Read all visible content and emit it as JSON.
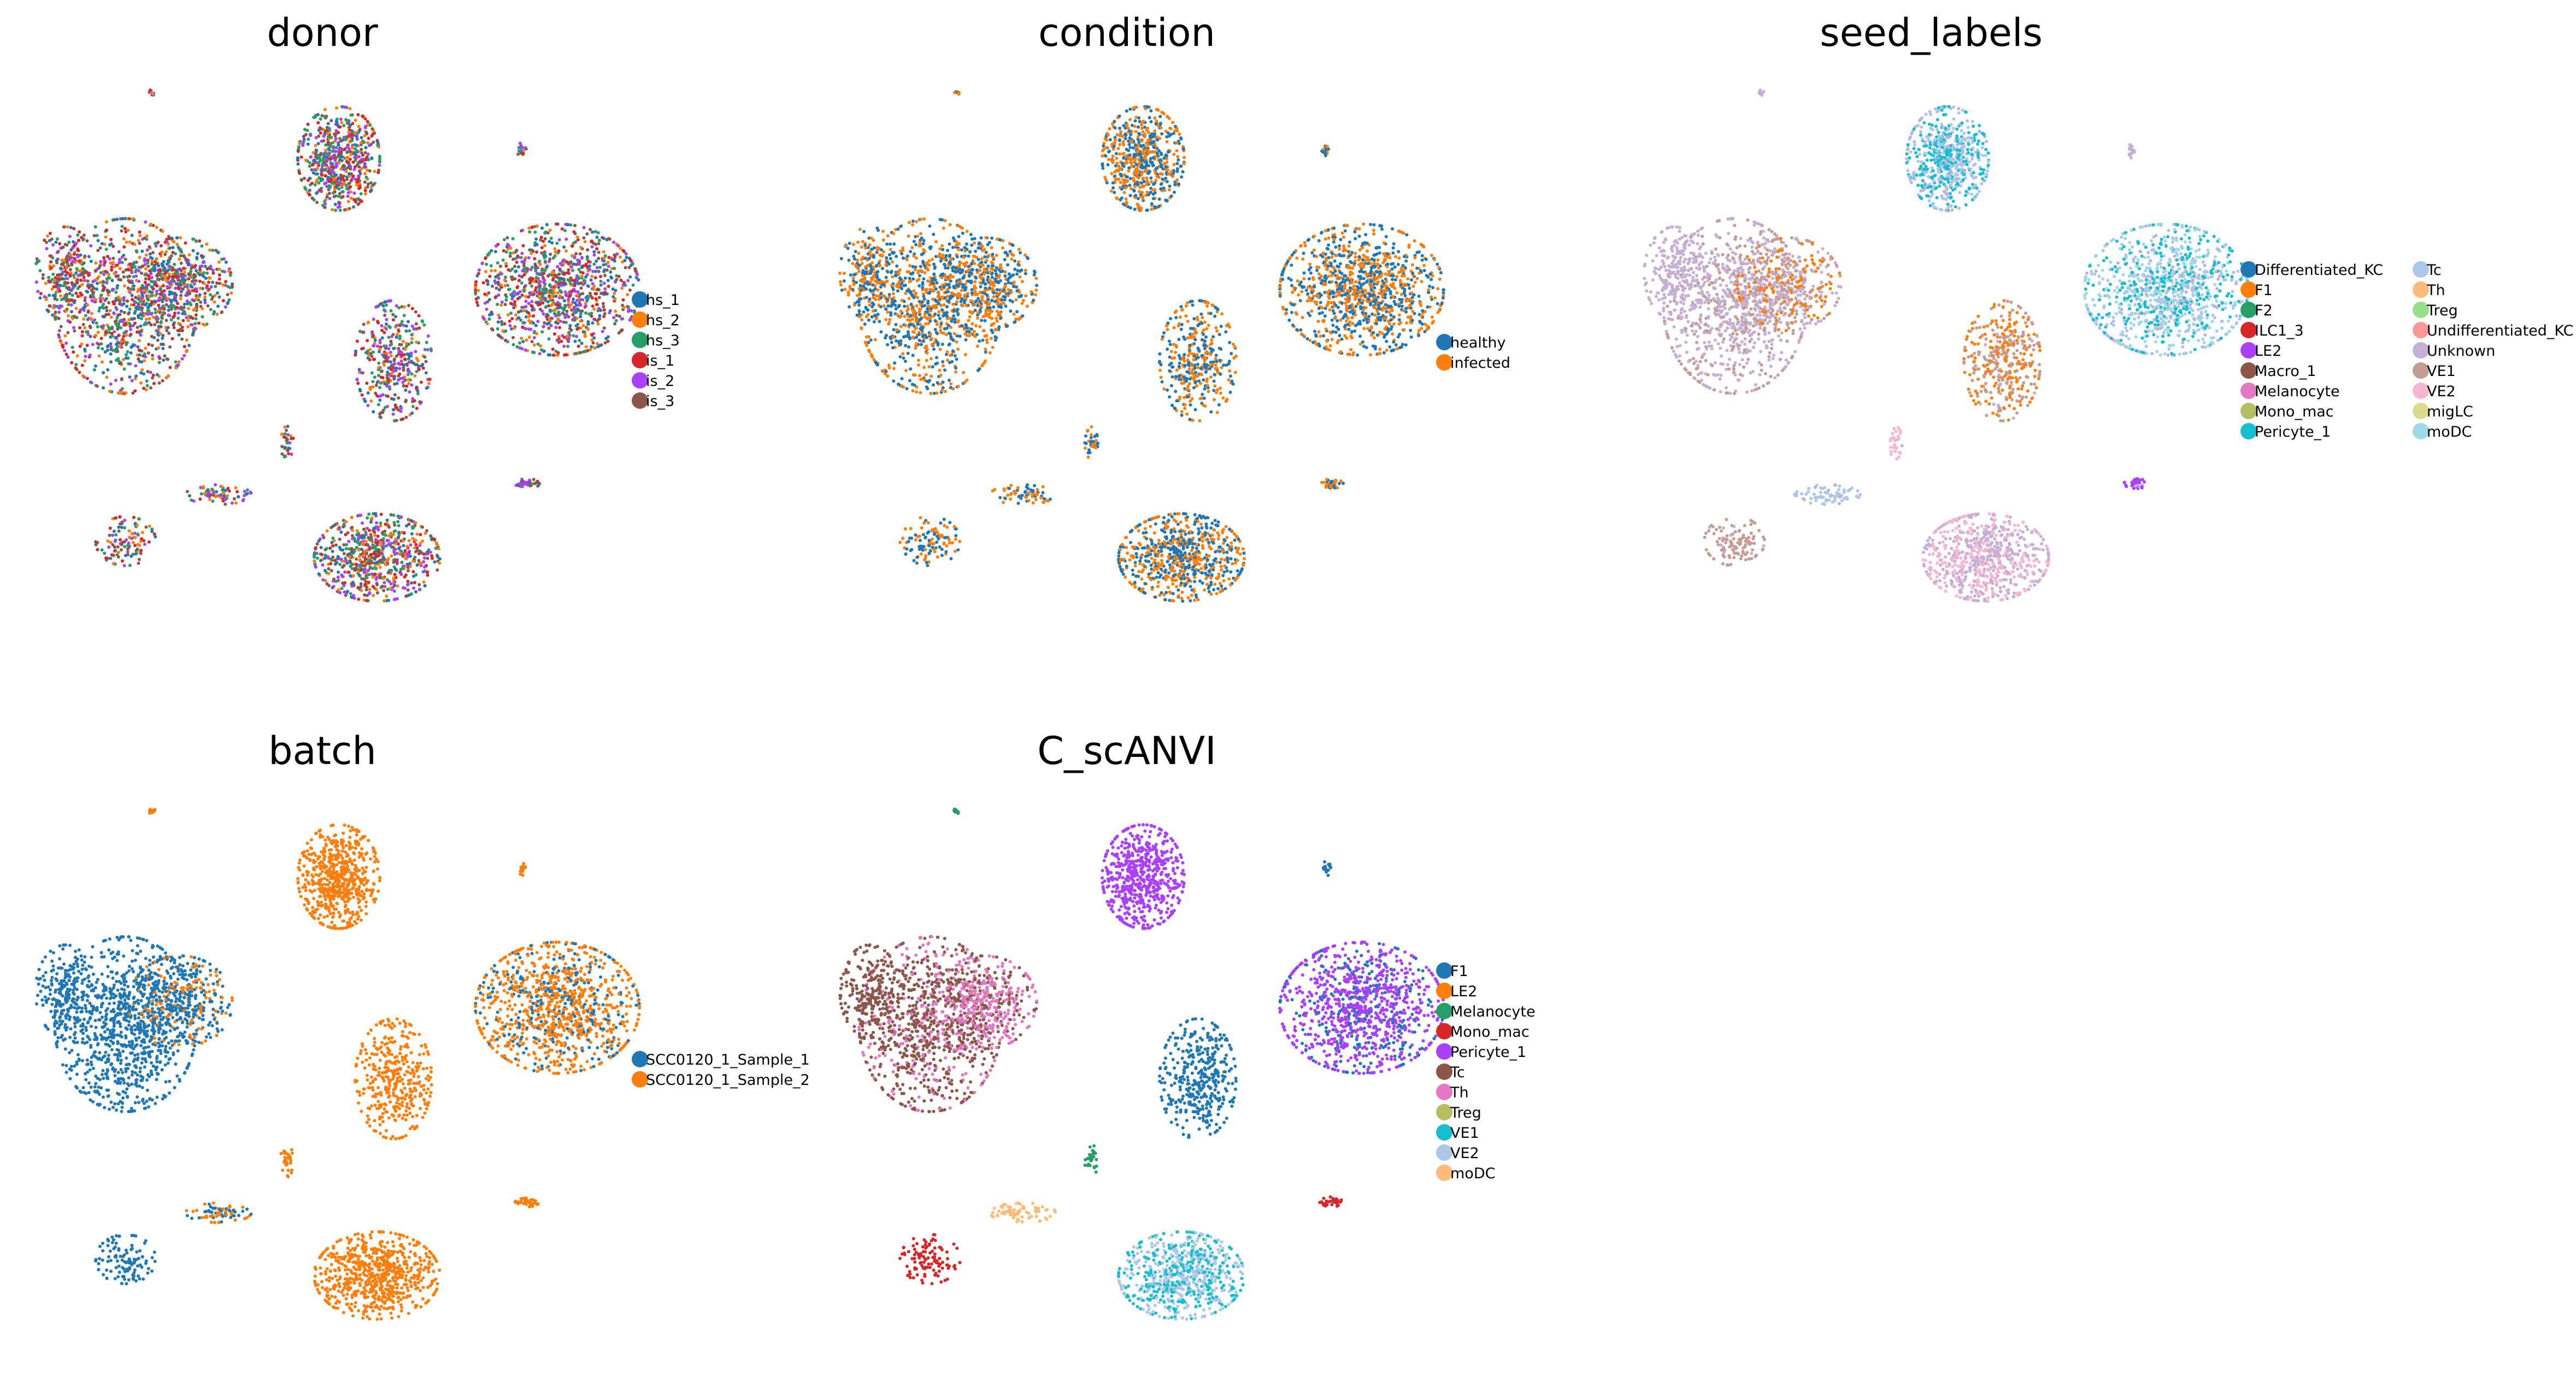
{
  "chart_data": [
    {
      "type": "scatter",
      "title": "donor",
      "xlabel": "",
      "ylabel": "",
      "grid": false,
      "legend_position": "right",
      "color_by": "donor",
      "legend_columns": 1,
      "mode": "mixed",
      "categories": [
        {
          "name": "hs_1",
          "color": "#1f77b4"
        },
        {
          "name": "hs_2",
          "color": "#ff7f0e"
        },
        {
          "name": "hs_3",
          "color": "#279e68"
        },
        {
          "name": "is_1",
          "color": "#d62728"
        },
        {
          "name": "is_2",
          "color": "#aa40fc"
        },
        {
          "name": "is_3",
          "color": "#8c564b"
        }
      ]
    },
    {
      "type": "scatter",
      "title": "condition",
      "xlabel": "",
      "ylabel": "",
      "grid": false,
      "legend_position": "right",
      "color_by": "condition",
      "legend_columns": 1,
      "mode": "mixed",
      "categories": [
        {
          "name": "healthy",
          "color": "#1f77b4"
        },
        {
          "name": "infected",
          "color": "#ff7f0e"
        }
      ]
    },
    {
      "type": "scatter",
      "title": "seed_labels",
      "xlabel": "",
      "ylabel": "",
      "grid": false,
      "legend_position": "right",
      "color_by": "seed_labels",
      "legend_columns": 2,
      "mode": "seed",
      "categories": [
        {
          "name": "Differentiated_KC",
          "color": "#1f77b4"
        },
        {
          "name": "F1",
          "color": "#ff7f0e"
        },
        {
          "name": "F2",
          "color": "#279e68"
        },
        {
          "name": "ILC1_3",
          "color": "#d62728"
        },
        {
          "name": "LE2",
          "color": "#aa40fc"
        },
        {
          "name": "Macro_1",
          "color": "#8c564b"
        },
        {
          "name": "Melanocyte",
          "color": "#e377c2"
        },
        {
          "name": "Mono_mac",
          "color": "#b5bd61"
        },
        {
          "name": "Pericyte_1",
          "color": "#17becf"
        },
        {
          "name": "Tc",
          "color": "#aec7e8"
        },
        {
          "name": "Th",
          "color": "#ffbb78"
        },
        {
          "name": "Treg",
          "color": "#98df8a"
        },
        {
          "name": "Undifferentiated_KC",
          "color": "#ff9896"
        },
        {
          "name": "Unknown",
          "color": "#c5b0d5"
        },
        {
          "name": "VE1",
          "color": "#c49c94"
        },
        {
          "name": "VE2",
          "color": "#f7b6d2"
        },
        {
          "name": "migLC",
          "color": "#dbdb8d"
        },
        {
          "name": "moDC",
          "color": "#9edae5"
        }
      ]
    },
    {
      "type": "scatter",
      "title": "batch",
      "xlabel": "",
      "ylabel": "",
      "grid": false,
      "legend_position": "right",
      "color_by": "batch",
      "legend_columns": 1,
      "mode": "batch",
      "categories": [
        {
          "name": "SCC0120_1_Sample_1",
          "color": "#1f77b4"
        },
        {
          "name": "SCC0120_1_Sample_2",
          "color": "#ff7f0e"
        }
      ]
    },
    {
      "type": "scatter",
      "title": "C_scANVI",
      "xlabel": "",
      "ylabel": "",
      "grid": false,
      "legend_position": "right",
      "color_by": "C_scANVI",
      "legend_columns": 1,
      "mode": "predicted",
      "categories": [
        {
          "name": "F1",
          "color": "#1f77b4"
        },
        {
          "name": "LE2",
          "color": "#ff7f0e"
        },
        {
          "name": "Melanocyte",
          "color": "#279e68"
        },
        {
          "name": "Mono_mac",
          "color": "#d62728"
        },
        {
          "name": "Pericyte_1",
          "color": "#aa40fc"
        },
        {
          "name": "Tc",
          "color": "#8c564b"
        },
        {
          "name": "Th",
          "color": "#e377c2"
        },
        {
          "name": "Treg",
          "color": "#b5bd61"
        },
        {
          "name": "VE1",
          "color": "#17becf"
        },
        {
          "name": "VE2",
          "color": "#aec7e8"
        },
        {
          "name": "moDC",
          "color": "#ffbb78"
        }
      ]
    }
  ]
}
